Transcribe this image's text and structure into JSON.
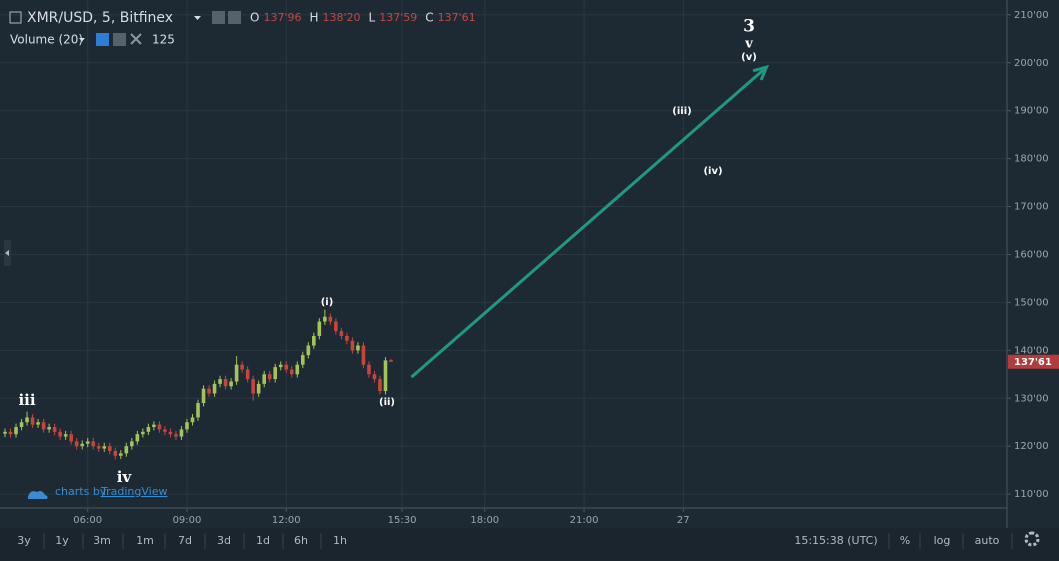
{
  "header": {
    "symbol": "XMR/USD, 5, Bitfinex",
    "ohlc": [
      {
        "key": "O",
        "value": "137'96"
      },
      {
        "key": "H",
        "value": "138'20"
      },
      {
        "key": "L",
        "value": "137'59"
      },
      {
        "key": "C",
        "value": "137'61"
      }
    ],
    "indicator": "Volume (20)",
    "indicator_value": "125"
  },
  "watermark": {
    "prefix": "charts by",
    "brand": "TradingView"
  },
  "toolbar": {
    "ranges": [
      "3y",
      "1y",
      "3m",
      "1m",
      "7d",
      "3d",
      "1d",
      "6h",
      "1h"
    ],
    "clock": "15:15:38 (UTC)",
    "options": [
      "%",
      "log",
      "auto"
    ]
  },
  "chart_data": {
    "type": "candlestick",
    "grid": true,
    "up_color": "#a3c45a",
    "down_color": "#c8453c",
    "arrow_color": "#1e9a83",
    "x": [
      210,
      220,
      230,
      240,
      250,
      260,
      270,
      280,
      290,
      300,
      310,
      320,
      330,
      340,
      350,
      360,
      370,
      380,
      390,
      400,
      410,
      420,
      430,
      440,
      450,
      460,
      470,
      480,
      490,
      500,
      510,
      520,
      530,
      540,
      550,
      560,
      570,
      580,
      590,
      600,
      610,
      620,
      630,
      640,
      650,
      660,
      670,
      680,
      690,
      700,
      710,
      720,
      730,
      740,
      750,
      760,
      770,
      780,
      790,
      800,
      810,
      820,
      830,
      840,
      850,
      860,
      870,
      880,
      890,
      900,
      910
    ],
    "open": [
      122.6,
      123,
      122.5,
      124,
      125,
      126,
      124.5,
      125,
      123.5,
      124,
      123,
      122,
      122.5,
      121,
      120,
      120.5,
      121,
      120,
      119.5,
      120,
      119,
      118,
      118.5,
      120,
      121,
      122.5,
      123,
      124,
      124.5,
      123.5,
      123,
      122.5,
      122,
      123.5,
      125,
      126,
      129,
      132,
      131,
      133,
      134,
      132.5,
      133.5,
      137,
      136,
      134,
      131,
      133,
      135,
      134,
      136.5,
      137,
      136,
      135,
      137,
      139,
      141,
      143,
      146,
      147,
      146,
      144,
      143,
      142,
      140,
      141,
      137,
      135,
      134,
      131.5,
      137.96
    ],
    "high": [
      123.7,
      123.7,
      124.7,
      125.7,
      127.2,
      126.7,
      125.7,
      125.7,
      124.7,
      124.7,
      123.7,
      123.2,
      123.2,
      121.7,
      121.2,
      121.7,
      121.7,
      120.7,
      120.7,
      120.7,
      119.7,
      119.2,
      120.7,
      121.7,
      123.2,
      123.7,
      124.7,
      125.2,
      125.2,
      124.2,
      123.7,
      123.2,
      124.2,
      125.7,
      126.7,
      129.7,
      132.7,
      132.7,
      133.7,
      134.7,
      134.7,
      134.2,
      138.8,
      137.7,
      136.7,
      134.7,
      133.7,
      135.7,
      135.7,
      137.2,
      137.7,
      137.7,
      136.7,
      137.7,
      139.7,
      141.7,
      143.7,
      146.7,
      148.5,
      147.7,
      146.7,
      144.7,
      143.7,
      142.7,
      141.7,
      141.7,
      137.7,
      135.7,
      134.7,
      138.6,
      138.2
    ],
    "low": [
      121.9,
      121.8,
      121.8,
      123.3,
      124.3,
      123.8,
      123.8,
      122.8,
      122.8,
      122.3,
      121.3,
      121.3,
      120.3,
      119.3,
      119.3,
      119.8,
      119.3,
      118.8,
      118.8,
      118.3,
      117.2,
      117.3,
      117.8,
      119.3,
      120.3,
      121.8,
      122.3,
      123.3,
      122.8,
      122.3,
      121.8,
      121.3,
      121.3,
      122.8,
      124.3,
      125.3,
      128.3,
      130.3,
      130.3,
      132.3,
      131.8,
      131.8,
      132.8,
      135.3,
      133.3,
      129.5,
      130.3,
      132.3,
      133.3,
      133.3,
      135.8,
      135.3,
      134.3,
      134.3,
      136.3,
      138.3,
      140.3,
      142.3,
      145.3,
      145.3,
      143.3,
      142.3,
      141.3,
      139.3,
      139.3,
      136.3,
      134.3,
      133.3,
      130.8,
      130.8,
      137.59
    ],
    "close": [
      123,
      122.5,
      124,
      125,
      126,
      124.5,
      125,
      123.5,
      124,
      123,
      122,
      122.5,
      121,
      120,
      120.5,
      121,
      120,
      119.5,
      120,
      119,
      118,
      118.5,
      120,
      121,
      122.5,
      123,
      124,
      124.5,
      123.5,
      123,
      122.5,
      122,
      123.5,
      125,
      126,
      129,
      132,
      131,
      133,
      134,
      132.5,
      133.5,
      137,
      136,
      134,
      131,
      133,
      135,
      134,
      136.5,
      137,
      136,
      135,
      137,
      139,
      141,
      143,
      146,
      147,
      146,
      144,
      143,
      142,
      140,
      141,
      137,
      135,
      134,
      131.5,
      137.9,
      137.61
    ],
    "xlim": [
      210,
      2027
    ],
    "ylim": [
      107.1,
      213.1
    ],
    "xticks": [
      {
        "value": 360,
        "label": "06:00"
      },
      {
        "value": 540,
        "label": "09:00"
      },
      {
        "value": 720,
        "label": "12:00"
      },
      {
        "value": 930,
        "label": "15:30"
      },
      {
        "value": 1080,
        "label": "18:00"
      },
      {
        "value": 1260,
        "label": "21:00"
      },
      {
        "value": 1440,
        "label": "27"
      }
    ],
    "yticks": [
      {
        "value": 110,
        "label": "110'00"
      },
      {
        "value": 120,
        "label": "120'00"
      },
      {
        "value": 130,
        "label": "130'00"
      },
      {
        "value": 140,
        "label": "140'00"
      },
      {
        "value": 150,
        "label": "150'00"
      },
      {
        "value": 160,
        "label": "160'00"
      },
      {
        "value": 170,
        "label": "170'00"
      },
      {
        "value": 180,
        "label": "180'00"
      },
      {
        "value": 190,
        "label": "190'00"
      },
      {
        "value": 200,
        "label": "200'00"
      },
      {
        "value": 210,
        "label": "210'00"
      }
    ],
    "last_price": {
      "value": 137.61,
      "label": "137'61"
    },
    "projection": {
      "x": [
        947,
        1591
      ],
      "y": [
        134.4,
        199.1
      ]
    },
    "annotations": [
      "iii",
      "iv",
      "(i)",
      "(ii)",
      "(iii)",
      "(iv)",
      "3",
      "v",
      "(v)"
    ]
  }
}
